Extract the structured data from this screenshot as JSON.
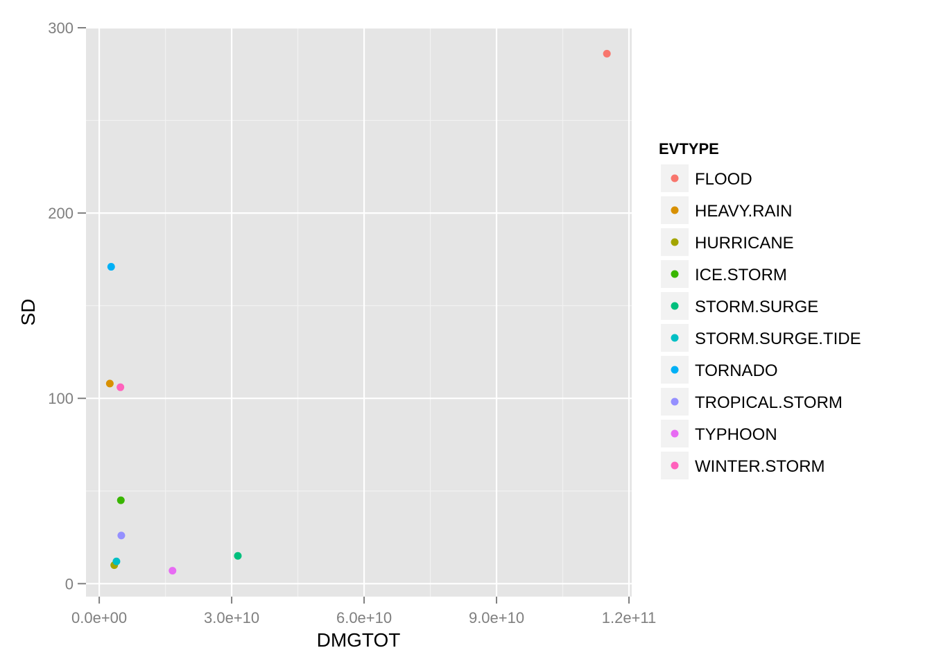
{
  "chart_data": {
    "type": "scatter",
    "xlabel": "DMGTOT",
    "ylabel": "SD",
    "xlim": [
      -3000000000,
      120000000000.0
    ],
    "ylim": [
      -7,
      300
    ],
    "x_ticks": [
      0,
      30000000000,
      60000000000,
      90000000000,
      120000000000
    ],
    "x_tick_labels": [
      "0.0e+00",
      "3.0e+10",
      "6.0e+10",
      "9.0e+10",
      "1.2e+11"
    ],
    "y_ticks": [
      0,
      100,
      200,
      300
    ],
    "y_tick_labels": [
      "0",
      "100",
      "200",
      "300"
    ],
    "grid": true,
    "legend_placement": "right",
    "legend": {
      "title": "EVTYPE",
      "entries": [
        {
          "name": "FLOOD",
          "color": "#F8766D"
        },
        {
          "name": "HEAVY.RAIN",
          "color": "#D89000"
        },
        {
          "name": "HURRICANE",
          "color": "#A3A500"
        },
        {
          "name": "ICE.STORM",
          "color": "#39B600"
        },
        {
          "name": "STORM.SURGE",
          "color": "#00BF7D"
        },
        {
          "name": "STORM.SURGE.TIDE",
          "color": "#00BFC4"
        },
        {
          "name": "TORNADO",
          "color": "#00B0F6"
        },
        {
          "name": "TROPICAL.STORM",
          "color": "#9590FF"
        },
        {
          "name": "TYPHOON",
          "color": "#E76BF3"
        },
        {
          "name": "WINTER.STORM",
          "color": "#FF62BC"
        }
      ]
    },
    "points": [
      {
        "category": "FLOOD",
        "x": 115000000000,
        "y": 286
      },
      {
        "category": "HEAVY.RAIN",
        "x": 2400000000,
        "y": 108
      },
      {
        "category": "HURRICANE",
        "x": 3400000000,
        "y": 10
      },
      {
        "category": "ICE.STORM",
        "x": 4900000000,
        "y": 45
      },
      {
        "category": "STORM.SURGE",
        "x": 31400000000,
        "y": 15
      },
      {
        "category": "STORM.SURGE.TIDE",
        "x": 3900000000,
        "y": 12
      },
      {
        "category": "TORNADO",
        "x": 2700000000,
        "y": 171
      },
      {
        "category": "TROPICAL.STORM",
        "x": 5000000000,
        "y": 26
      },
      {
        "category": "TYPHOON",
        "x": 16600000000,
        "y": 7
      },
      {
        "category": "WINTER.STORM",
        "x": 4800000000,
        "y": 106
      }
    ]
  }
}
